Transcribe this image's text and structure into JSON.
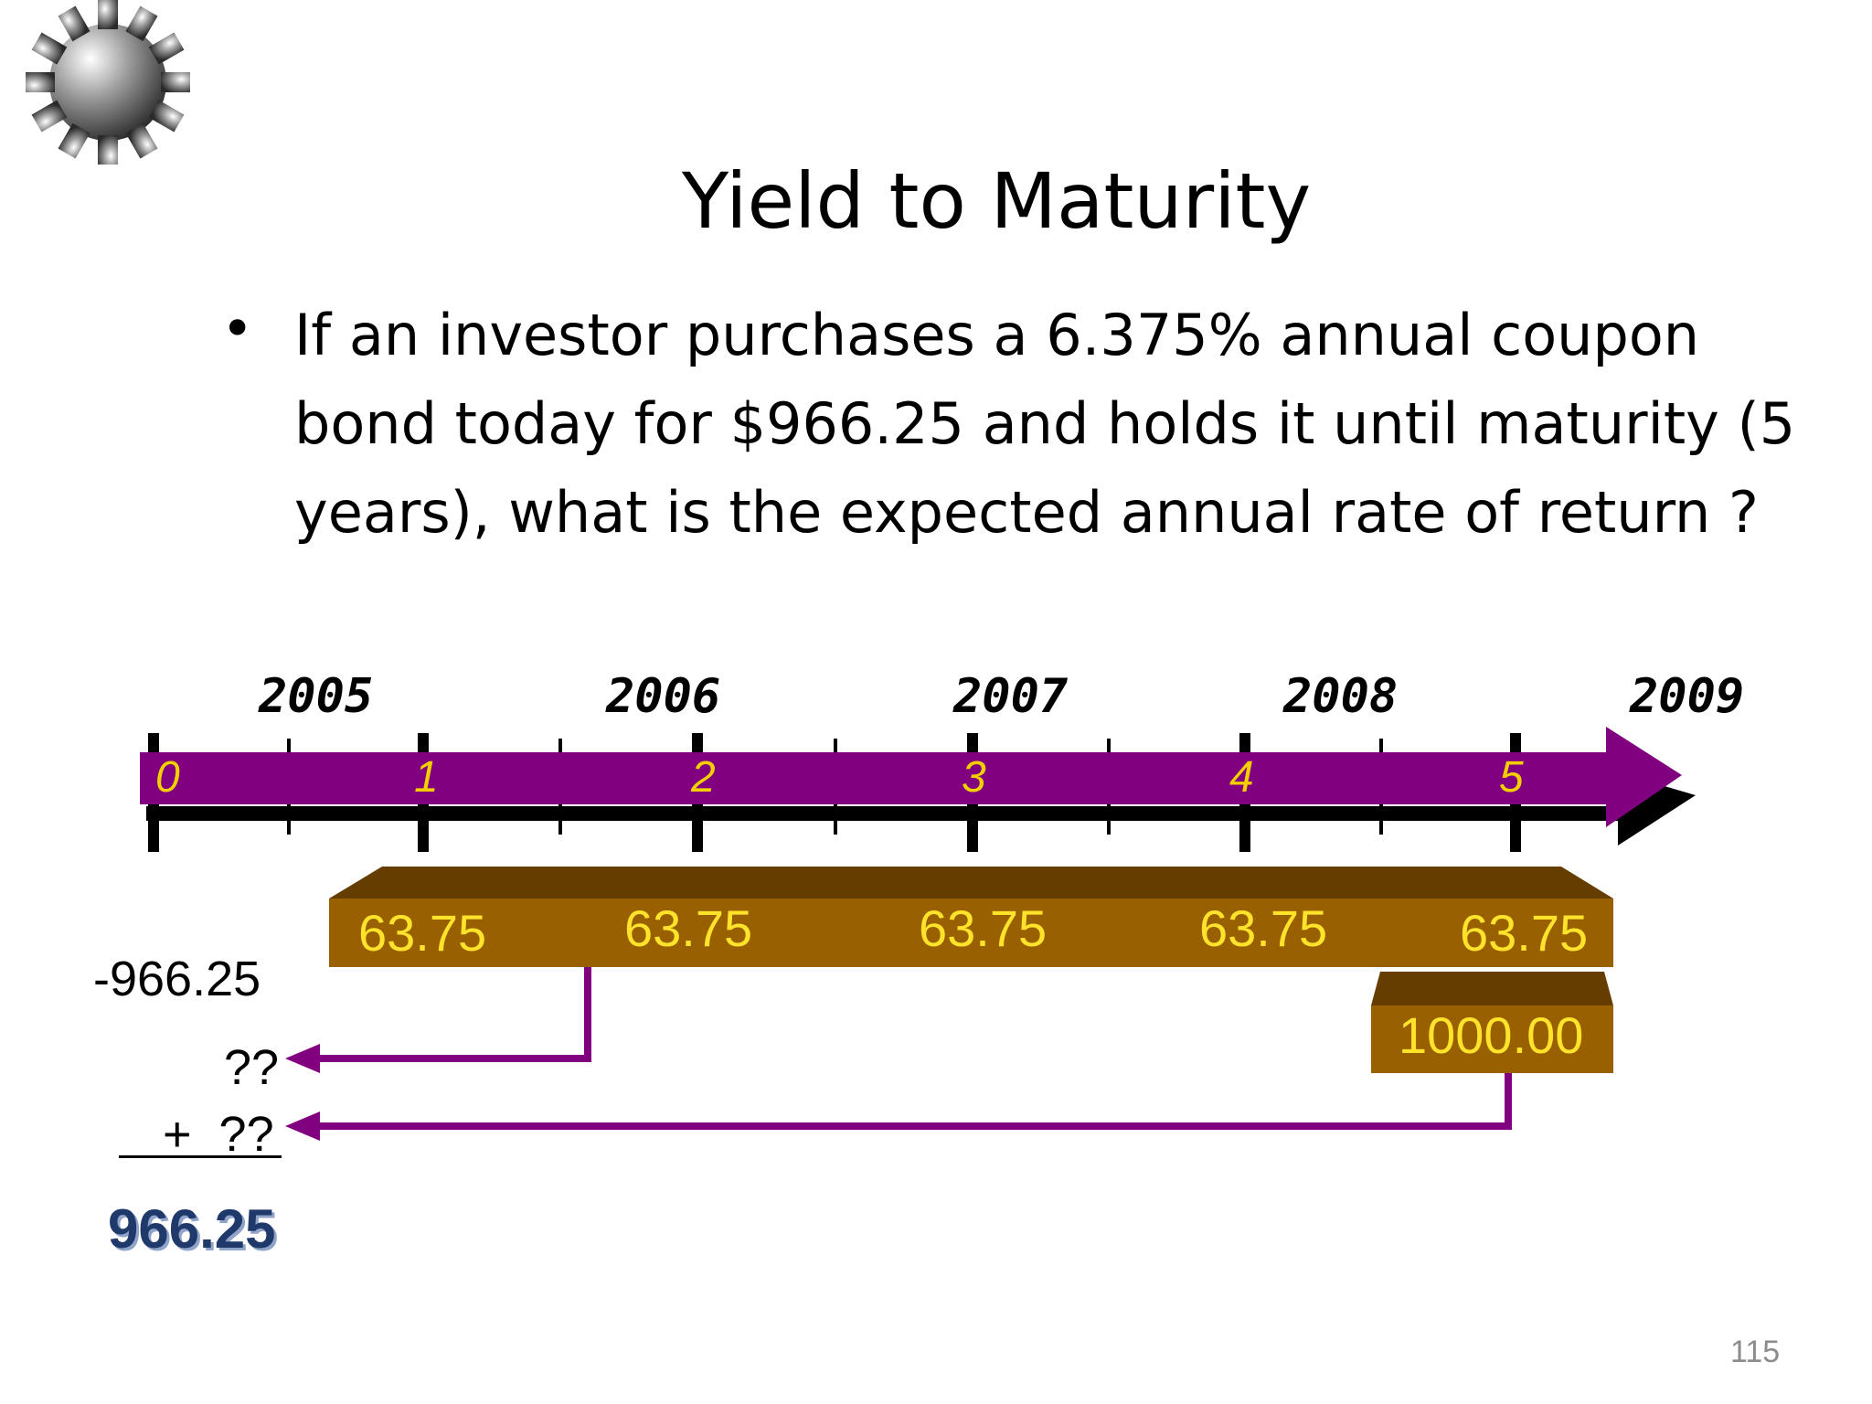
{
  "slide": {
    "title": "Yield to Maturity",
    "bullet_text": "If an investor purchases a 6.375% annual coupon bond today for $966.25 and holds it until maturity (5 years), what is the expected annual rate of return ?",
    "page_number": "115"
  },
  "timeline": {
    "years": [
      "2005",
      "2006",
      "2007",
      "2008",
      "2009"
    ],
    "periods": [
      "0",
      "1",
      "2",
      "3",
      "4",
      "5"
    ],
    "coupons": [
      "63.75",
      "63.75",
      "63.75",
      "63.75",
      "63.75"
    ],
    "principal": "1000.00"
  },
  "calc": {
    "price": "-966.25",
    "unknown_1": "??",
    "unknown_2": "+  ??",
    "total": "966.25"
  },
  "colors": {
    "timeline_arrow": "#800080",
    "cash_box": "#996000",
    "cash_box_top": "#663d00",
    "cash_text": "#ffe32a",
    "total_text": "#1f3a6a"
  },
  "icons": {
    "gear": "gear-icon"
  }
}
